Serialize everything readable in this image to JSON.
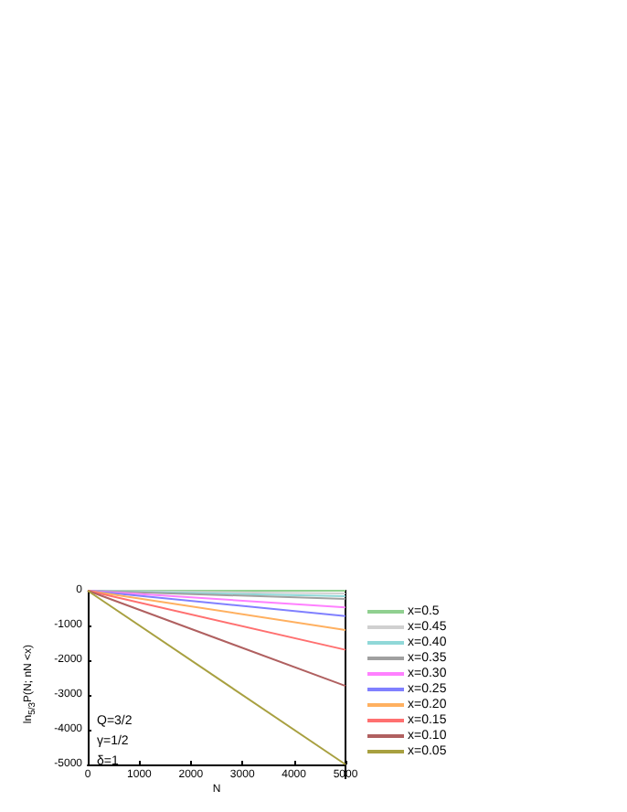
{
  "chart_data": {
    "type": "line",
    "xlabel": "N",
    "ylabel": "ln$_{5/3}$P(N; nN <x)",
    "xlim": [
      0,
      5000
    ],
    "ylim": [
      -5000,
      0
    ],
    "xticks": [
      0,
      1000,
      2000,
      3000,
      4000,
      5000
    ],
    "yticks": [
      -5000,
      -4000,
      -3000,
      -2000,
      -1000,
      0
    ],
    "legend": "right",
    "grid": false,
    "x": [
      0,
      5000
    ],
    "marker": "none",
    "annotations": [
      "Q=3/2",
      "γ=1/2",
      "δ=1"
    ],
    "series": [
      {
        "name": "x=0.5",
        "color": "#90d090",
        "values": [
          0,
          0
        ]
      },
      {
        "name": "x=0.45",
        "color": "#d0d0d0",
        "values": [
          0,
          -80
        ]
      },
      {
        "name": "x=0.40",
        "color": "#90d8d8",
        "values": [
          0,
          -160
        ]
      },
      {
        "name": "x=0.35",
        "color": "#a0a0a0",
        "values": [
          0,
          -240
        ]
      },
      {
        "name": "x=0.30",
        "color": "#ff80ff",
        "values": [
          0,
          -480
        ]
      },
      {
        "name": "x=0.25",
        "color": "#8080ff",
        "values": [
          0,
          -730
        ]
      },
      {
        "name": "x=0.20",
        "color": "#ffb060",
        "values": [
          0,
          -1130
        ]
      },
      {
        "name": "x=0.15",
        "color": "#ff7070",
        "values": [
          0,
          -1700
        ]
      },
      {
        "name": "x=0.10",
        "color": "#b06060",
        "values": [
          0,
          -2740
        ]
      },
      {
        "name": "x=0.05",
        "color": "#a8a040",
        "values": [
          0,
          -5000
        ]
      }
    ]
  }
}
